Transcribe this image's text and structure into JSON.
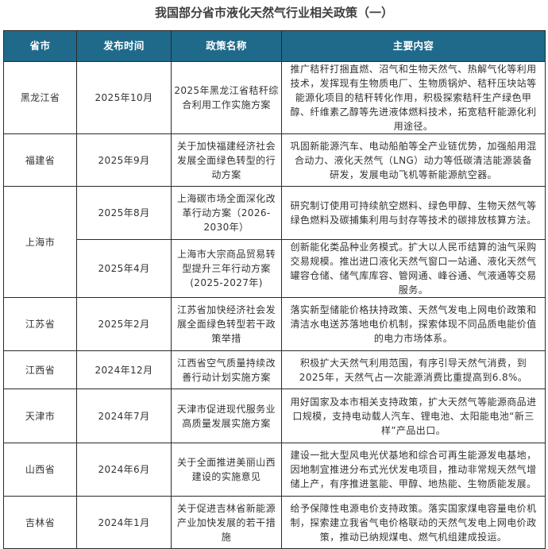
{
  "title": "我国部分省市液化天然气行业相关政策（一）",
  "colors": {
    "header_bg": "#1f6a8a",
    "header_text": "#ffffff"
  },
  "headers": [
    "省市",
    "发布时间",
    "政策名称",
    "主要内容"
  ],
  "rows": [
    {
      "province": "黑龙江省",
      "date": "2025年10月",
      "policy": "2025年黑龙江省秸秆综合利用工作实施方案",
      "content": "推广秸秆打捆直燃、沼气和生物天然气、热解气化等利用技术，发挥现有生物质电厂、生物质锅炉、秸秆压块站等能源化项目的秸秆转化作用，积极探索秸秆生产绿色甲醇、纤维素乙醇等先进液体燃料技术，拓宽秸秆能源化利用途径。"
    },
    {
      "province": "福建省",
      "date": "2025年9月",
      "policy": "关于加快福建经济社会发展全面绿色转型的行动方案",
      "content": "巩固新能源汽车、电动船舶等全产业链优势，加强船用混合动力、液化天然气（LNG）动力等低碳清洁能源装备研发，发展电动飞机等新能源航空器。"
    },
    {
      "province": "上海市",
      "date": "2025年8月",
      "policy": "上海碳市场全面深化改革行动方案（2026-2030年）",
      "content": "研究制订使用可持续航空燃料、绿色甲醇、生物天然气等绿色燃料及碳捕集利用与封存等技术的碳排放核算方法。"
    },
    {
      "province": "上海市",
      "date": "2025年4月",
      "policy": "上海市大宗商品贸易转型提升三年行动方案(2025-2027年)",
      "content": "创新能化类品种业务模式。扩大以人民币结算的油气采购交易规模。推出进口液化天然气窗口一站通、液化天然气罐容仓储、储气库库容、管网通、峰谷通、气液通等交易服务。"
    },
    {
      "province": "江苏省",
      "date": "2025年2月",
      "policy": "江苏省加快经济社会发展全面绿色转型若干政策举措",
      "content": "落实新型储能价格扶持政策、天然气发电上网电价政策和清洁水电送苏落地电价机制，探索体现不同品质电能价值的电力市场体系。"
    },
    {
      "province": "江西省",
      "date": "2024年12月",
      "policy": "江西省空气质量持续改善行动计划实施方案",
      "content": "积极扩大天然气利用范围，有序引导天然气消费，到2025年，天然气占一次能源消费比重提高到6.8%。"
    },
    {
      "province": "天津市",
      "date": "2024年7月",
      "policy": "天津市促进现代服务业高质量发展实施方案",
      "content": "用好国家及本市相关支持政策，扩大天然气等能源商品进口规模，支持电动载人汽车、锂电池、太阳能电池“新三样”产品出口。"
    },
    {
      "province": "山西省",
      "date": "2024年6月",
      "policy": "关于全面推进美丽山西建设的实施意见",
      "content": "建设一批大型风电光伏基地和综合可再生能源发电基地，因地制宜推进分布式光伏发电项目，推动非常规天然气增储上产，有序推进氢能、甲醇、地热能、生物质能发展。"
    },
    {
      "province": "吉林省",
      "date": "2024年1月",
      "policy": "关于促进吉林省新能源产业加快发展的若干措施",
      "content": "给予保障性电源电价支持政策。落实国家煤电容量电价机制，探索建立我省气电价格联动的天然气发电上网电价政策，推动已纳规煤电、燃气机组建成投运。"
    }
  ]
}
